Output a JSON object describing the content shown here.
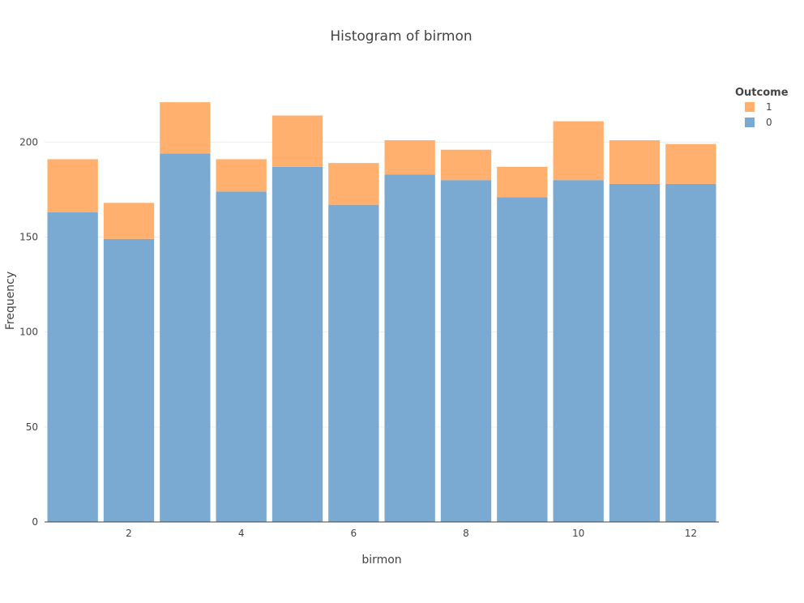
{
  "chart_data": {
    "type": "bar",
    "stacked": true,
    "title": "Histogram of birmon",
    "xlabel": "birmon",
    "ylabel": "Frequency",
    "categories": [
      1,
      2,
      3,
      4,
      5,
      6,
      7,
      8,
      9,
      10,
      11,
      12
    ],
    "x_ticks": [
      2,
      4,
      6,
      8,
      10,
      12
    ],
    "y_ticks": [
      0,
      50,
      100,
      150,
      200
    ],
    "xlim": [
      0.5,
      12.5
    ],
    "ylim": [
      0,
      233
    ],
    "grid": "horizontal",
    "legend": {
      "title": "Outcome",
      "placement": "top-right"
    },
    "series": [
      {
        "name": "0",
        "color": "#7aaad1",
        "values": [
          163,
          149,
          194,
          174,
          187,
          167,
          183,
          180,
          171,
          180,
          178,
          178
        ]
      },
      {
        "name": "1",
        "color": "#ffb06e",
        "values": [
          28,
          19,
          27,
          17,
          27,
          22,
          18,
          16,
          16,
          31,
          23,
          21
        ]
      }
    ]
  }
}
